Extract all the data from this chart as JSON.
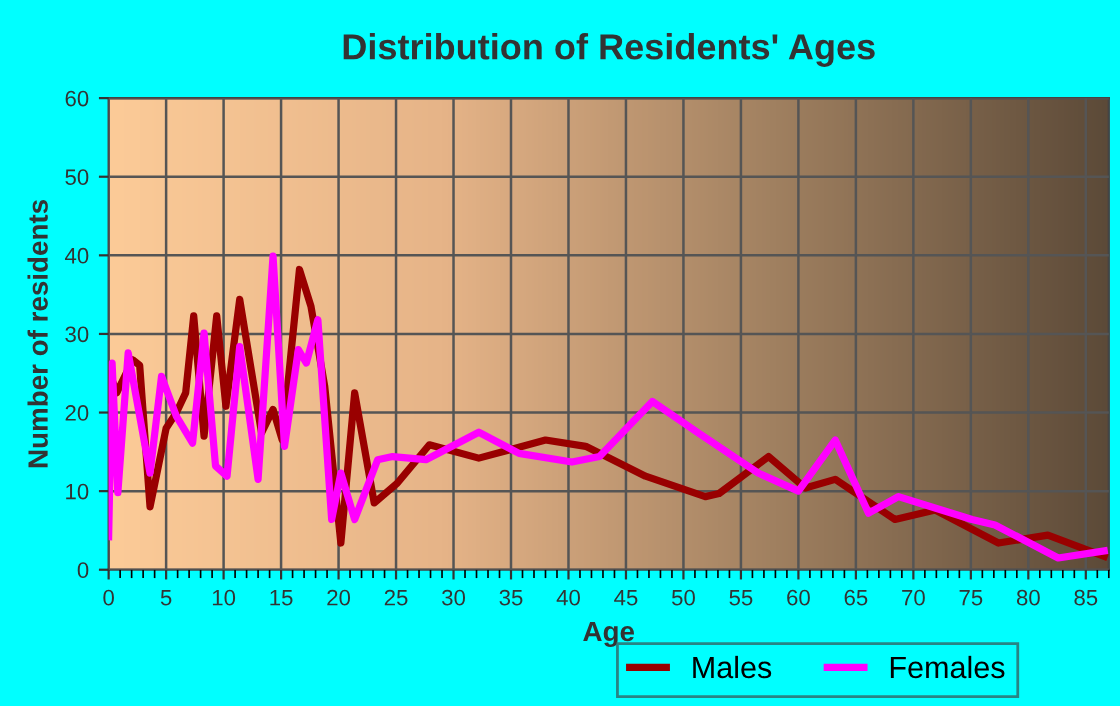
{
  "chart_data": {
    "type": "line",
    "title": "Distribution of Residents' Ages",
    "xlabel": "Age",
    "ylabel": "Number of residents",
    "xlim": [
      0,
      87
    ],
    "xticks": [
      0,
      5,
      10,
      15,
      20,
      25,
      30,
      35,
      40,
      45,
      50,
      55,
      60,
      65,
      70,
      75,
      80,
      85
    ],
    "ylim": [
      0,
      60
    ],
    "yticks": [
      0,
      10,
      20,
      30,
      40,
      50,
      60
    ],
    "grid": true,
    "legend": "bottom",
    "marker": "none",
    "line_style": "solid",
    "series": [
      {
        "name": "Males",
        "color": "#990000",
        "x": [
          0,
          0.1,
          0.7,
          2.1,
          2.7,
          3.6,
          5,
          5.9,
          6.7,
          7.4,
          8.3,
          9.4,
          10.2,
          11.4,
          13.3,
          14.3,
          15.1,
          16.6,
          17.6,
          18.8,
          20.2,
          21.4,
          23.1,
          25.1,
          27.9,
          32.2,
          38,
          41.5,
          46.7,
          51.9,
          53.1,
          57.4,
          60.6,
          63.2,
          68.4,
          71.9,
          77.4,
          81.7,
          86.6
        ],
        "values": [
          21.6,
          25,
          22.5,
          26.7,
          26,
          8,
          18,
          20,
          22.5,
          32.3,
          17,
          32.3,
          20.8,
          34.4,
          17.4,
          20.4,
          16.5,
          38.2,
          33.5,
          23.3,
          3.4,
          22.5,
          8.5,
          11,
          15.9,
          14.2,
          16.5,
          15.7,
          11.9,
          9.3,
          9.7,
          14.4,
          10.4,
          11.5,
          6.4,
          7.6,
          3.4,
          4.4,
          1.7
        ]
      },
      {
        "name": "Females",
        "color": "#ff00ff",
        "x": [
          0,
          0.3,
          0.8,
          1.7,
          3.6,
          4.6,
          5.9,
          7.3,
          8.3,
          9.3,
          10.3,
          11.4,
          13,
          14.3,
          15.3,
          16.5,
          17.2,
          18.2,
          19.4,
          20.2,
          21.4,
          23.4,
          24.7,
          27.6,
          32.2,
          35.7,
          40.3,
          42.7,
          47.3,
          51.3,
          56.5,
          60,
          63.2,
          66.1,
          68.7,
          75.1,
          77.1,
          82.6,
          86.6
        ],
        "values": [
          4.2,
          26.3,
          9.8,
          27.6,
          12.3,
          24.6,
          19.5,
          16.1,
          30.1,
          13.2,
          11.9,
          28.4,
          11.5,
          39.9,
          15.7,
          28,
          26.3,
          31.8,
          6.4,
          12.3,
          6.4,
          14,
          14.4,
          14,
          17.5,
          14.8,
          13.7,
          14.4,
          21.4,
          17.4,
          12.3,
          10,
          16.5,
          7.2,
          9.3,
          6.4,
          5.7,
          1.5,
          2.4
        ]
      }
    ]
  }
}
